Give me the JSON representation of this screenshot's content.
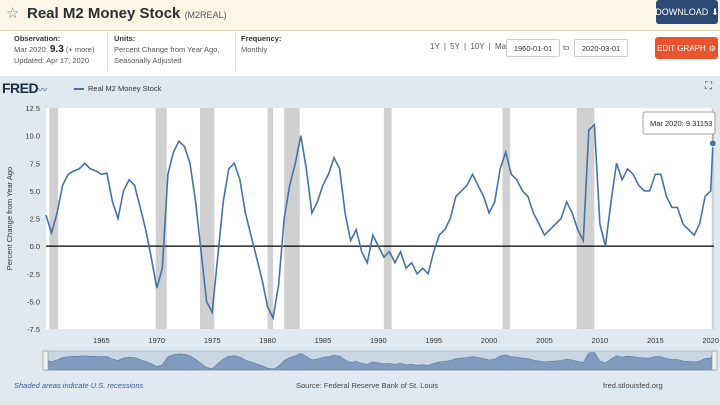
{
  "header": {
    "title": "Real M2 Money Stock",
    "series_code": "(M2REAL)",
    "download_label": "DOWNLOAD"
  },
  "meta": {
    "observation_label": "Observation:",
    "observation_date": "Mar 2020:",
    "observation_value": "9.3",
    "observation_more": "(+ more)",
    "updated": "Updated: Apr 17, 2020",
    "units_label": "Units:",
    "units_line1": "Percent Change from Year Ago,",
    "units_line2": "Seasonally Adjusted",
    "frequency_label": "Frequency:",
    "frequency_value": "Monthly"
  },
  "controls": {
    "ranges": "1Y | 5Y | 10Y | Max",
    "start_date": "1960-01-01",
    "to_label": "to",
    "end_date": "2020-03-01",
    "edit_label": "EDIT GRAPH"
  },
  "chart_header": {
    "logo": "FRED",
    "legend_label": "Real M2 Money Stock"
  },
  "tooltip": {
    "text": "Mar 2020: 9.31153"
  },
  "footer": {
    "recession_note": "Shaded areas indicate U.S. recessions",
    "source": "Source: Federal Reserve Bank of St. Louis",
    "site": "fred.stlouisfed.org"
  },
  "icons": {
    "star": "star-icon",
    "download": "download-icon",
    "gear": "gear-icon",
    "expand": "expand-icon"
  },
  "colors": {
    "series": "#4572a7",
    "recession": "#c8c8c8",
    "download_button": "#2c4a73",
    "edit_button": "#e8542f"
  },
  "chart_data": {
    "type": "line",
    "title": "Real M2 Money Stock",
    "xlabel": "",
    "ylabel": "Percent Change from Year Ago",
    "ylim": [
      -7.5,
      12.5
    ],
    "xlim": [
      1960,
      2020.3
    ],
    "y_ticks": [
      12.5,
      10.0,
      7.5,
      5.0,
      2.5,
      0.0,
      -2.5,
      -5.0,
      -7.5
    ],
    "x_ticks": [
      1965,
      1970,
      1975,
      1980,
      1985,
      1990,
      1995,
      2000,
      2005,
      2010,
      2015,
      2020
    ],
    "grid": false,
    "legend": "top-left",
    "recessions": [
      [
        1960.3,
        1961.1
      ],
      [
        1969.9,
        1970.9
      ],
      [
        1973.9,
        1975.2
      ],
      [
        1980.0,
        1980.5
      ],
      [
        1981.5,
        1982.9
      ],
      [
        1990.5,
        1991.2
      ],
      [
        2001.2,
        2001.9
      ],
      [
        2007.9,
        2009.5
      ],
      [
        2020.1,
        2020.3
      ]
    ],
    "series": [
      {
        "name": "Real M2 Money Stock",
        "x": [
          1960.0,
          1960.5,
          1961.0,
          1961.5,
          1962.0,
          1962.5,
          1963.0,
          1963.5,
          1964.0,
          1964.5,
          1965.0,
          1965.5,
          1966.0,
          1966.5,
          1967.0,
          1967.5,
          1968.0,
          1968.5,
          1969.0,
          1969.5,
          1970.0,
          1970.5,
          1971.0,
          1971.5,
          1972.0,
          1972.5,
          1973.0,
          1973.5,
          1974.0,
          1974.5,
          1975.0,
          1975.5,
          1976.0,
          1976.5,
          1977.0,
          1977.5,
          1978.0,
          1978.5,
          1979.0,
          1979.5,
          1980.0,
          1980.5,
          1981.0,
          1981.5,
          1982.0,
          1982.5,
          1983.0,
          1983.5,
          1984.0,
          1984.5,
          1985.0,
          1985.5,
          1986.0,
          1986.5,
          1987.0,
          1987.5,
          1988.0,
          1988.5,
          1989.0,
          1989.5,
          1990.0,
          1990.5,
          1991.0,
          1991.5,
          1992.0,
          1992.5,
          1993.0,
          1993.5,
          1994.0,
          1994.5,
          1995.0,
          1995.5,
          1996.0,
          1996.5,
          1997.0,
          1997.5,
          1998.0,
          1998.5,
          1999.0,
          1999.5,
          2000.0,
          2000.5,
          2001.0,
          2001.5,
          2002.0,
          2002.5,
          2003.0,
          2003.5,
          2004.0,
          2004.5,
          2005.0,
          2005.5,
          2006.0,
          2006.5,
          2007.0,
          2007.5,
          2008.0,
          2008.5,
          2009.0,
          2009.5,
          2010.0,
          2010.5,
          2011.0,
          2011.5,
          2012.0,
          2012.5,
          2013.0,
          2013.5,
          2014.0,
          2014.5,
          2015.0,
          2015.5,
          2016.0,
          2016.5,
          2017.0,
          2017.5,
          2018.0,
          2018.5,
          2019.0,
          2019.5,
          2020.0,
          2020.2
        ],
        "values": [
          2.8,
          1.2,
          3.0,
          5.5,
          6.5,
          6.8,
          7.0,
          7.5,
          7.0,
          6.8,
          6.5,
          6.6,
          4.0,
          2.5,
          5.0,
          6.0,
          5.5,
          3.5,
          1.5,
          -1.0,
          -3.8,
          -2.0,
          6.5,
          8.5,
          9.5,
          9.0,
          7.5,
          4.0,
          -0.5,
          -5.0,
          -6.0,
          -1.0,
          4.0,
          7.0,
          7.5,
          6.0,
          3.0,
          1.0,
          -1.0,
          -3.0,
          -5.5,
          -6.5,
          -3.5,
          2.5,
          5.5,
          7.5,
          10.0,
          7.0,
          3.0,
          4.0,
          5.5,
          6.5,
          8.0,
          7.0,
          3.0,
          0.5,
          1.5,
          -0.5,
          -1.5,
          1.0,
          0.0,
          -1.0,
          -0.5,
          -1.5,
          -0.5,
          -2.0,
          -1.5,
          -2.5,
          -2.0,
          -2.5,
          -0.5,
          1.0,
          1.5,
          2.5,
          4.5,
          5.0,
          5.5,
          6.5,
          5.5,
          4.5,
          3.0,
          4.0,
          7.0,
          8.5,
          6.5,
          6.0,
          5.0,
          4.5,
          3.0,
          2.0,
          1.0,
          1.5,
          2.0,
          2.5,
          4.0,
          3.0,
          1.5,
          0.5,
          10.5,
          11.0,
          2.0,
          0.0,
          4.0,
          7.5,
          6.0,
          7.0,
          6.5,
          5.5,
          5.0,
          5.0,
          6.5,
          6.5,
          4.5,
          3.5,
          3.5,
          2.0,
          1.5,
          1.0,
          2.0,
          4.5,
          5.0,
          9.3
        ]
      }
    ]
  }
}
